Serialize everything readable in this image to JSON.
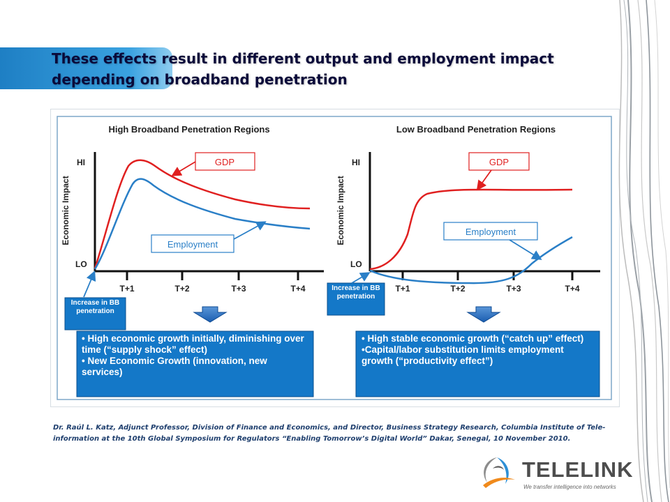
{
  "slide": {
    "title": "These effects result in different output and employment impact depending on broadband penetration"
  },
  "diagram": {
    "left_panel": {
      "heading": "High Broadband Penetration Regions",
      "y_axis_label": "Economic Impact",
      "hi_label": "HI",
      "lo_label": "LO",
      "ticks": [
        "T+1",
        "T+2",
        "T+3",
        "T+4"
      ],
      "gdp_label": "GDP",
      "employment_label": "Employment",
      "bb_box": "Increase in BB penetration",
      "result_lines": [
        "• High economic growth initially, diminishing over time (“supply shock” effect)",
        "• New Economic Growth (innovation, new services)"
      ]
    },
    "right_panel": {
      "heading": "Low Broadband Penetration Regions",
      "y_axis_label": "Economic Impact",
      "hi_label": "HI",
      "lo_label": "LO",
      "ticks": [
        "T+1",
        "T+2",
        "T+3",
        "T+4"
      ],
      "gdp_label": "GDP",
      "employment_label": "Employment",
      "bb_box": "Increase in BB penetration",
      "result_lines": [
        "• High stable economic growth (“catch up” effect)",
        "•Capital/labor substitution limits employment growth (“productivity effect”)"
      ]
    },
    "colors": {
      "gdp": "#e02020",
      "employment": "#2a7fc7",
      "box_fill": "#1478c8",
      "panel_border": "#7da7c9"
    }
  },
  "caption": "Dr. Raúl L. Katz, Adjunct Professor, Division of Finance and Economics, and Director, Business Strategy Research, Columbia Institute of Tele-information at the 10th Global Symposium for Regulators “Enabling Tomorrow’s Digital World” Dakar, Senegal, 10 November 2010.",
  "logo": {
    "name": "TELELINK",
    "tagline": "We transfer intelligence into networks"
  }
}
